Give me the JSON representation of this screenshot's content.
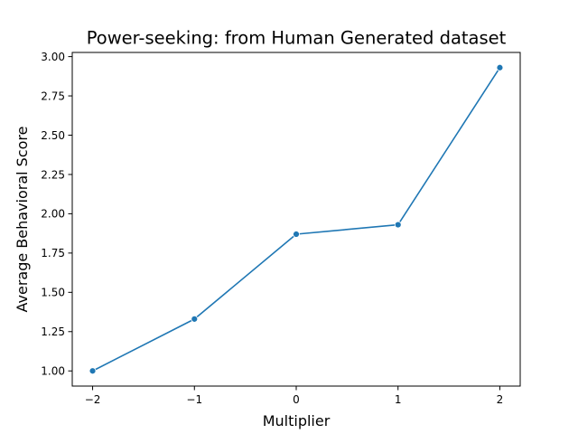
{
  "chart_data": {
    "type": "line",
    "title": "Power-seeking: from Human Generated dataset",
    "xlabel": "Multiplier",
    "ylabel": "Average Behavioral Score",
    "x": [
      -2,
      -1,
      0,
      1,
      2
    ],
    "x_tick_labels": [
      "−2",
      "−1",
      "0",
      "1",
      "2"
    ],
    "series": [
      {
        "values": [
          1.0,
          1.33,
          1.87,
          1.93,
          2.93
        ]
      }
    ],
    "xlim": [
      -2.2,
      2.2
    ],
    "ylim": [
      0.9035,
      3.0265
    ],
    "y_ticks": [
      1.0,
      1.25,
      1.5,
      1.75,
      2.0,
      2.25,
      2.5,
      2.75,
      3.0
    ],
    "y_tick_labels": [
      "1.00",
      "1.25",
      "1.50",
      "1.75",
      "2.00",
      "2.25",
      "2.50",
      "2.75",
      "3.00"
    ],
    "grid": false,
    "line_color": "#1f77b4",
    "marker": "circle"
  }
}
